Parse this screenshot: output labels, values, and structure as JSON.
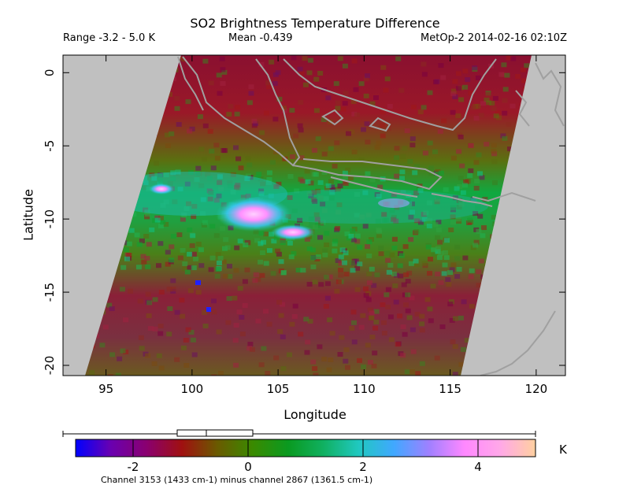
{
  "title": "SO2 Brightness Temperature Difference",
  "range_text": "Range -3.2 - 5.0 K",
  "mean_text": "Mean -0.439",
  "satellite_text": "MetOp-2 2014-02-16 02:10Z",
  "xlabel": "Longitude",
  "ylabel": "Latitude",
  "footnote": "Channel 3153 (1433 cm-1) minus channel 2867 (1361.5 cm-1)",
  "colorbar": {
    "unit": "K",
    "min": -3,
    "max": 5,
    "ticks": [
      -2,
      0,
      2,
      4
    ],
    "tick_labels": [
      "-2",
      "0",
      "2",
      "4"
    ],
    "colors": [
      "#0000ff",
      "#6a00b0",
      "#8a0070",
      "#a01010",
      "#6a5a00",
      "#3a8a00",
      "#0a9a20",
      "#10b060",
      "#20c8c0",
      "#40a8ff",
      "#a080ff",
      "#ff88ff",
      "#ffa8e8",
      "#ffd0a0"
    ],
    "range_box": [
      -3.2,
      5.0
    ]
  },
  "map": {
    "lon_range": [
      92.5,
      121.7
    ],
    "lat_range": [
      -20.7,
      1.2
    ],
    "x_ticks": [
      95,
      100,
      105,
      110,
      115,
      120
    ],
    "x_tick_labels": [
      "95",
      "100",
      "105",
      "110",
      "115",
      "120"
    ],
    "y_ticks": [
      0,
      -5,
      -10,
      -15,
      -20
    ],
    "y_tick_labels": [
      "0",
      "-5",
      "-10",
      "-15",
      "-20"
    ],
    "nodata_color": "#c0c0c0",
    "coastline_color": "#a0a0a0"
  }
}
